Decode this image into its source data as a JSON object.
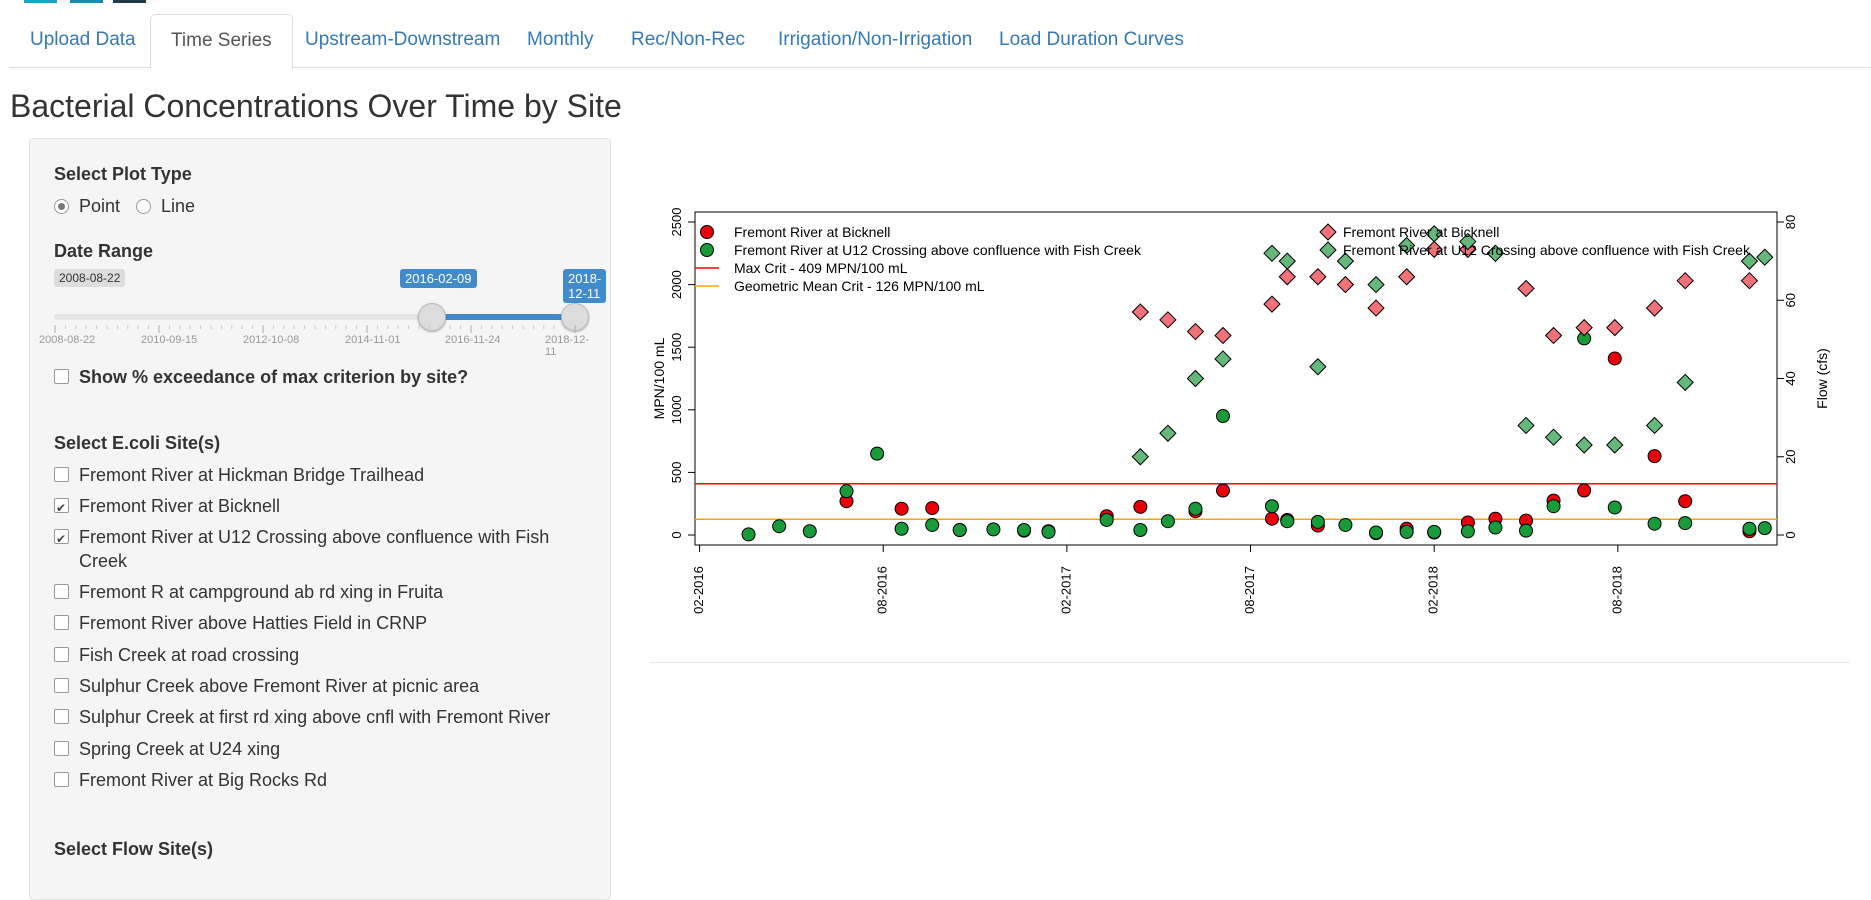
{
  "nav": {
    "tabs": [
      {
        "label": "Upload Data"
      },
      {
        "label": "Time Series"
      },
      {
        "label": "Upstream-Downstream"
      },
      {
        "label": "Monthly"
      },
      {
        "label": "Rec/Non-Rec"
      },
      {
        "label": "Irrigation/Non-Irrigation"
      },
      {
        "label": "Load Duration Curves"
      }
    ],
    "active_tab": "Time Series"
  },
  "page_title": "Bacterial Concentrations Over Time by Site",
  "sidebar": {
    "plot_type": {
      "label": "Select Plot Type",
      "options": [
        "Point",
        "Line"
      ],
      "selected": "Point"
    },
    "date_range": {
      "label": "Date Range",
      "min": "2008-08-22",
      "from": "2016-02-09",
      "to": "2018-12-11",
      "ticks": [
        "2008-08-22",
        "2010-09-15",
        "2012-10-08",
        "2014-11-01",
        "2016-11-24",
        "2018-12-11"
      ]
    },
    "exceedance": {
      "label": "Show % exceedance of max criterion by site?",
      "checked": false
    },
    "ecoli_sites": {
      "label": "Select E.coli Site(s)",
      "items": [
        {
          "label": "Fremont River at Hickman Bridge Trailhead",
          "checked": false
        },
        {
          "label": "Fremont River at Bicknell",
          "checked": true
        },
        {
          "label": "Fremont River at U12 Crossing above confluence with Fish Creek",
          "checked": true
        },
        {
          "label": "Fremont R at campground ab rd xing in Fruita",
          "checked": false
        },
        {
          "label": "Fremont River above Hatties Field in CRNP",
          "checked": false
        },
        {
          "label": "Fish Creek at road crossing",
          "checked": false
        },
        {
          "label": "Sulphur Creek above Fremont River at picnic area",
          "checked": false
        },
        {
          "label": "Sulphur Creek at first rd xing above cnfl with Fremont River",
          "checked": false
        },
        {
          "label": "Spring Creek at U24 xing",
          "checked": false
        },
        {
          "label": "Fremont River at Big Rocks Rd",
          "checked": false
        }
      ]
    },
    "flow_sites_label": "Select Flow Site(s)"
  },
  "colors": {
    "accent": "#337ab7",
    "slider_bar": "#428bca",
    "red": "#e8000b",
    "green": "#1a9b3a",
    "red_light": "#f07178",
    "green_light": "#66b77a",
    "max_line": "#ff0000",
    "geo_line": "#ffa500"
  },
  "chart_data": {
    "type": "scatter",
    "ylabel": "MPN/100 mL",
    "y2label": "Flow (cfs)",
    "ylim": [
      0,
      2500
    ],
    "y2lim": [
      0,
      80
    ],
    "yticks": [
      0,
      500,
      1000,
      1500,
      2000,
      2500
    ],
    "y2ticks": [
      0,
      20,
      40,
      60,
      80
    ],
    "xticks": [
      "02-2016",
      "08-2016",
      "02-2017",
      "08-2017",
      "02-2018",
      "08-2018"
    ],
    "xlim_months": [
      -0.15,
      35.2
    ],
    "legend_left": [
      "Fremont River at Bicknell",
      "Fremont River at U12 Crossing above confluence with Fish Creek",
      "Max Crit - 409 MPN/100 mL",
      "Geometric Mean Crit - 126 MPN/100 mL"
    ],
    "legend_right": [
      "Fremont River at Bicknell",
      "Fremont River at U12 Crossing above confluence with Fish Creek"
    ],
    "hlines": [
      {
        "name": "Max Crit - 409 MPN/100 mL",
        "y": 409
      },
      {
        "name": "Geometric Mean Crit - 126 MPN/100 mL",
        "y": 126
      }
    ],
    "series": [
      {
        "name": "Fremont River at Bicknell",
        "kind": "ecoli",
        "points": [
          [
            4.8,
            270
          ],
          [
            6.6,
            210
          ],
          [
            7.6,
            215
          ],
          [
            8.5,
            40
          ],
          [
            10.6,
            35
          ],
          [
            11.4,
            30
          ],
          [
            13.3,
            150
          ],
          [
            14.4,
            225
          ],
          [
            16.2,
            190
          ],
          [
            17.1,
            355
          ],
          [
            18.7,
            130
          ],
          [
            19.2,
            120
          ],
          [
            20.2,
            75
          ],
          [
            22.1,
            15
          ],
          [
            23.1,
            50
          ],
          [
            24.0,
            20
          ],
          [
            25.1,
            100
          ],
          [
            26.0,
            130
          ],
          [
            27.0,
            115
          ],
          [
            27.9,
            275
          ],
          [
            28.9,
            355
          ],
          [
            29.9,
            1410
          ],
          [
            31.2,
            630
          ],
          [
            32.2,
            270
          ],
          [
            34.3,
            30
          ]
        ]
      },
      {
        "name": "Fremont River at U12 Crossing above confluence with Fish Creek",
        "kind": "ecoli",
        "points": [
          [
            1.6,
            5
          ],
          [
            2.6,
            70
          ],
          [
            3.6,
            30
          ],
          [
            4.8,
            350
          ],
          [
            5.8,
            650
          ],
          [
            6.6,
            50
          ],
          [
            7.6,
            80
          ],
          [
            8.5,
            40
          ],
          [
            9.6,
            45
          ],
          [
            10.6,
            40
          ],
          [
            11.4,
            25
          ],
          [
            13.3,
            120
          ],
          [
            14.4,
            40
          ],
          [
            15.3,
            110
          ],
          [
            16.2,
            210
          ],
          [
            17.1,
            950
          ],
          [
            18.7,
            230
          ],
          [
            19.2,
            110
          ],
          [
            20.2,
            105
          ],
          [
            21.1,
            80
          ],
          [
            22.1,
            20
          ],
          [
            23.1,
            25
          ],
          [
            24.0,
            25
          ],
          [
            25.1,
            30
          ],
          [
            26.0,
            60
          ],
          [
            27.0,
            35
          ],
          [
            27.9,
            230
          ],
          [
            28.9,
            1570
          ],
          [
            29.9,
            220
          ],
          [
            31.2,
            90
          ],
          [
            32.2,
            95
          ],
          [
            34.3,
            50
          ],
          [
            34.8,
            55
          ]
        ]
      },
      {
        "name": "Fremont River at Bicknell",
        "kind": "flow",
        "points": [
          [
            14.4,
            57
          ],
          [
            15.3,
            55
          ],
          [
            16.2,
            52
          ],
          [
            17.1,
            51
          ],
          [
            18.7,
            59
          ],
          [
            19.2,
            66
          ],
          [
            20.2,
            66
          ],
          [
            21.1,
            64
          ],
          [
            22.1,
            58
          ],
          [
            23.1,
            66
          ],
          [
            24.0,
            73
          ],
          [
            25.1,
            73
          ],
          [
            26.0,
            72
          ],
          [
            27.0,
            63
          ],
          [
            27.9,
            51
          ],
          [
            28.9,
            53
          ],
          [
            29.9,
            53
          ],
          [
            31.2,
            58
          ],
          [
            32.2,
            65
          ],
          [
            34.3,
            65
          ]
        ]
      },
      {
        "name": "Fremont River at U12 Crossing above confluence with Fish Creek",
        "kind": "flow",
        "points": [
          [
            14.4,
            20
          ],
          [
            15.3,
            26
          ],
          [
            16.2,
            40
          ],
          [
            17.1,
            45
          ],
          [
            18.7,
            72
          ],
          [
            19.2,
            70
          ],
          [
            20.2,
            43
          ],
          [
            21.1,
            70
          ],
          [
            22.1,
            64
          ],
          [
            23.1,
            74
          ],
          [
            24.0,
            77
          ],
          [
            25.1,
            75
          ],
          [
            26.0,
            72
          ],
          [
            27.0,
            28
          ],
          [
            27.9,
            25
          ],
          [
            28.9,
            23
          ],
          [
            29.9,
            23
          ],
          [
            31.2,
            28
          ],
          [
            32.2,
            39
          ],
          [
            34.3,
            70
          ],
          [
            34.8,
            71
          ]
        ]
      }
    ]
  }
}
